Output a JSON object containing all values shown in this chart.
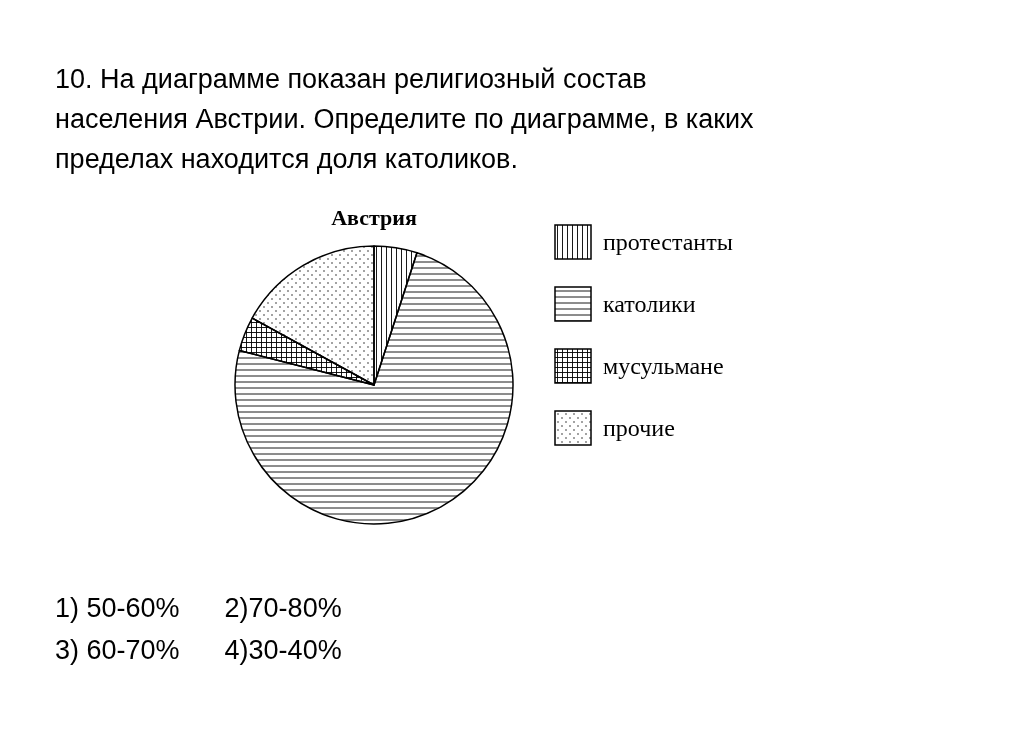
{
  "chart_data": {
    "type": "pie",
    "title": "Австрия",
    "categories": [
      "протестанты",
      "католики",
      "мусульмане",
      "прочие"
    ],
    "values": [
      5,
      74,
      4,
      17
    ],
    "colors": [
      "#000000",
      "#000000",
      "#000000",
      "#000000"
    ],
    "legend": "right",
    "annotations": [
      "10. На диаграмме показан религиозный состав населения Австрии. Определите по диаграмме, в каких пределах находится доля католиков.",
      "1) 50-60%      2)70-80%",
      "3) 60-70%      4)30-40%"
    ]
  }
}
